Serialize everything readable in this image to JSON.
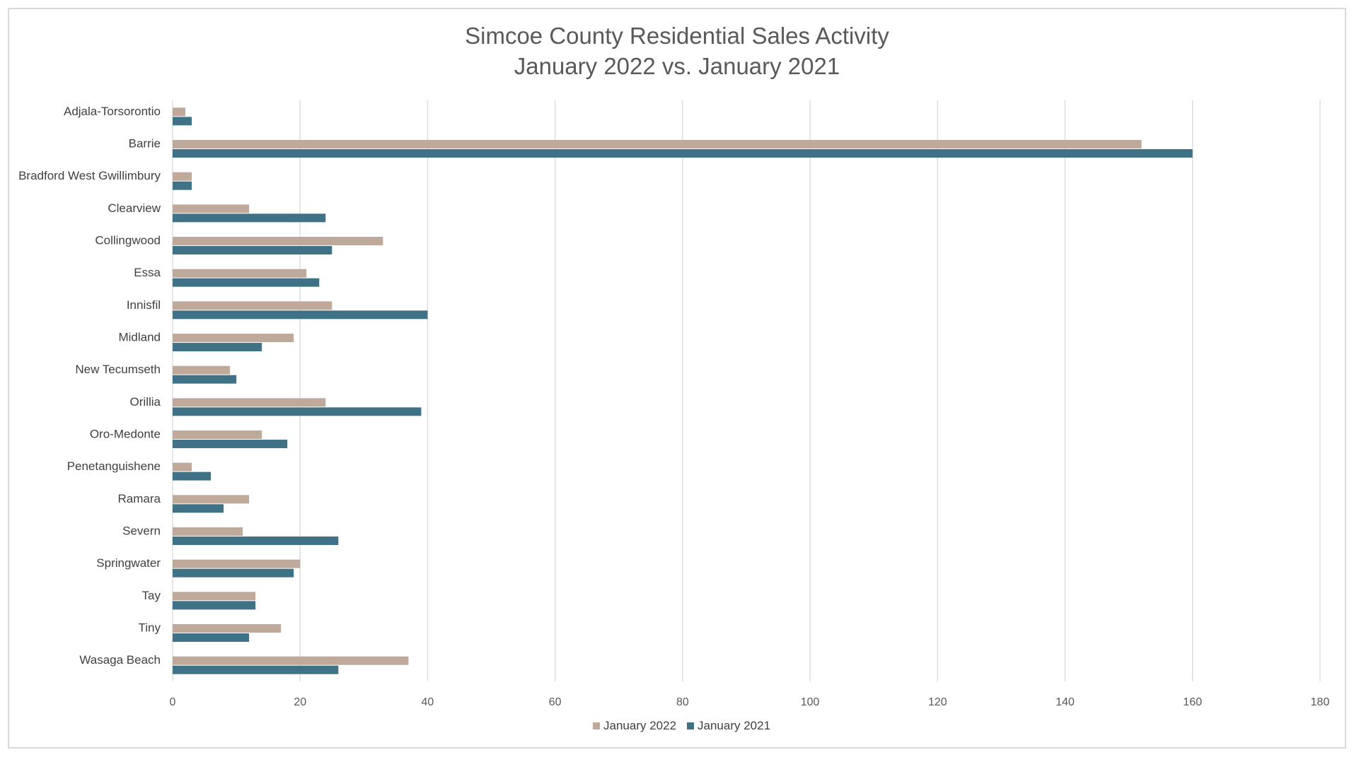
{
  "chart_data": {
    "type": "bar",
    "orientation": "horizontal",
    "title": "Simcoe County Residential Sales Activity",
    "subtitle": "January 2022 vs. January 2021",
    "xlabel": "",
    "ylabel": "",
    "xlim": [
      0,
      180
    ],
    "xticks": [
      "0",
      "20",
      "40",
      "60",
      "80",
      "100",
      "120",
      "140",
      "160",
      "180"
    ],
    "grid": "vertical",
    "legend_position": "bottom",
    "categories": [
      "Adjala-Torsorontio",
      "Barrie",
      "Bradford West Gwillimbury",
      "Clearview",
      "Collingwood",
      "Essa",
      "Innisfil",
      "Midland",
      "New Tecumseth",
      "Orillia",
      "Oro-Medonte",
      "Penetanguishene",
      "Ramara",
      "Severn",
      "Springwater",
      "Tay",
      "Tiny",
      "Wasaga Beach"
    ],
    "series": [
      {
        "name": "January 2022",
        "color": "#bfa99b",
        "values": [
          2,
          152,
          3,
          12,
          33,
          21,
          25,
          19,
          9,
          24,
          14,
          3,
          12,
          11,
          20,
          13,
          17,
          37
        ]
      },
      {
        "name": "January 2021",
        "color": "#3f7187",
        "values": [
          3,
          160,
          3,
          24,
          25,
          23,
          40,
          14,
          10,
          39,
          18,
          6,
          8,
          26,
          19,
          13,
          12,
          26
        ]
      }
    ]
  }
}
